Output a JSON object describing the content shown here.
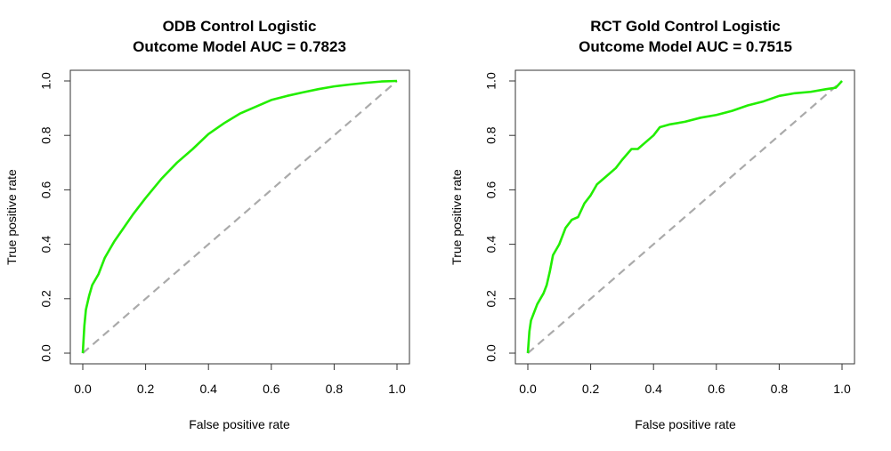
{
  "chart_data": [
    {
      "type": "line",
      "title": "ODB Control Logistic",
      "subtitle": "Outcome Model AUC = 0.7823",
      "xlabel": "False positive rate",
      "ylabel": "True positive rate",
      "xlim": [
        0,
        1
      ],
      "ylim": [
        0,
        1
      ],
      "xticks": [
        "0.0",
        "0.2",
        "0.4",
        "0.6",
        "0.8",
        "1.0"
      ],
      "yticks": [
        "0.0",
        "0.2",
        "0.4",
        "0.6",
        "0.8",
        "1.0"
      ],
      "grid": false,
      "legend": "none",
      "series": [
        {
          "color": "#22ee00",
          "style": "solid",
          "x": [
            0,
            0.005,
            0.01,
            0.02,
            0.03,
            0.05,
            0.07,
            0.1,
            0.13,
            0.16,
            0.2,
            0.25,
            0.3,
            0.35,
            0.4,
            0.45,
            0.5,
            0.55,
            0.6,
            0.65,
            0.7,
            0.75,
            0.8,
            0.85,
            0.9,
            0.95,
            1.0
          ],
          "y": [
            0,
            0.1,
            0.16,
            0.21,
            0.25,
            0.29,
            0.35,
            0.41,
            0.46,
            0.51,
            0.57,
            0.64,
            0.7,
            0.75,
            0.805,
            0.845,
            0.88,
            0.905,
            0.93,
            0.945,
            0.958,
            0.97,
            0.98,
            0.987,
            0.993,
            0.998,
            1.0
          ]
        },
        {
          "color": "#aaaaaa",
          "style": "dashed",
          "x": [
            0,
            1
          ],
          "y": [
            0,
            1
          ]
        }
      ]
    },
    {
      "type": "line",
      "title": "RCT Gold Control Logistic",
      "subtitle": "Outcome Model AUC = 0.7515",
      "xlabel": "False positive rate",
      "ylabel": "True positive rate",
      "xlim": [
        0,
        1
      ],
      "ylim": [
        0,
        1
      ],
      "xticks": [
        "0.0",
        "0.2",
        "0.4",
        "0.6",
        "0.8",
        "1.0"
      ],
      "yticks": [
        "0.0",
        "0.2",
        "0.4",
        "0.6",
        "0.8",
        "1.0"
      ],
      "grid": false,
      "legend": "none",
      "series": [
        {
          "color": "#22ee00",
          "style": "solid",
          "x": [
            0,
            0.005,
            0.01,
            0.02,
            0.03,
            0.05,
            0.06,
            0.07,
            0.08,
            0.1,
            0.12,
            0.14,
            0.16,
            0.18,
            0.2,
            0.22,
            0.25,
            0.28,
            0.3,
            0.33,
            0.35,
            0.38,
            0.4,
            0.42,
            0.45,
            0.5,
            0.55,
            0.6,
            0.65,
            0.7,
            0.75,
            0.8,
            0.85,
            0.9,
            0.95,
            0.98,
            1.0
          ],
          "y": [
            0,
            0.08,
            0.12,
            0.15,
            0.18,
            0.22,
            0.25,
            0.3,
            0.36,
            0.4,
            0.46,
            0.49,
            0.5,
            0.55,
            0.58,
            0.62,
            0.65,
            0.68,
            0.71,
            0.75,
            0.75,
            0.78,
            0.8,
            0.83,
            0.84,
            0.85,
            0.865,
            0.875,
            0.89,
            0.91,
            0.925,
            0.945,
            0.955,
            0.96,
            0.97,
            0.975,
            1.0
          ]
        },
        {
          "color": "#aaaaaa",
          "style": "dashed",
          "x": [
            0,
            1
          ],
          "y": [
            0,
            1
          ]
        }
      ]
    }
  ]
}
